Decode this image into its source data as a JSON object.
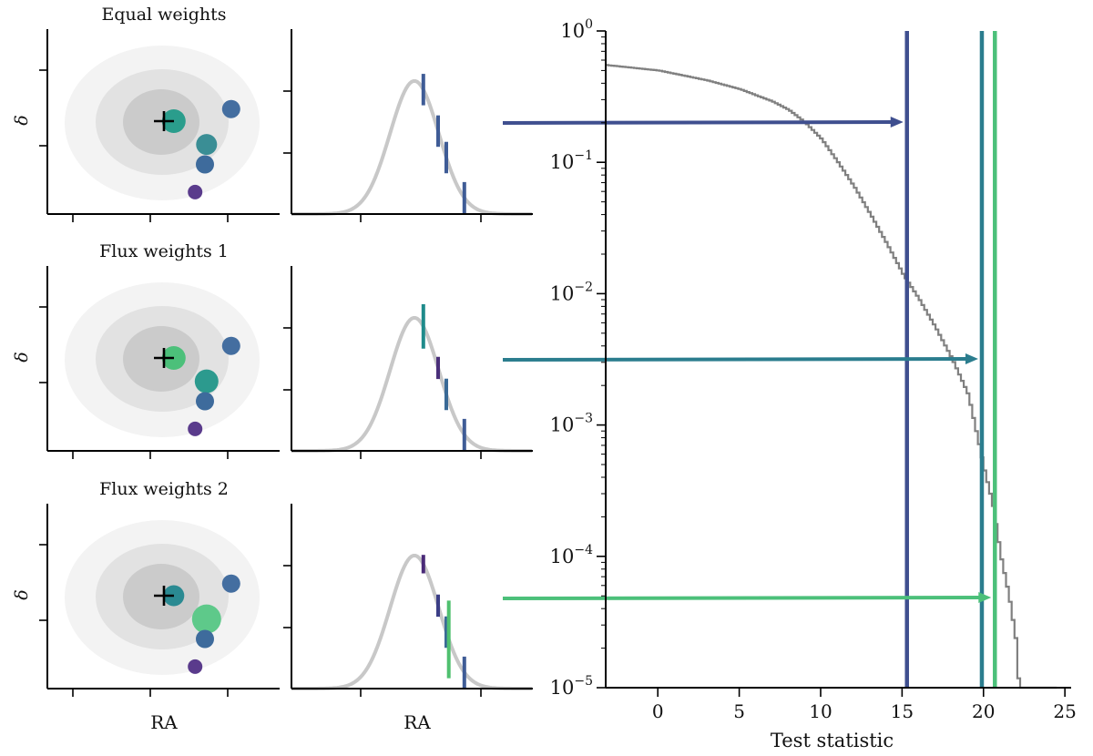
{
  "chart_data": [
    {
      "type": "scatter",
      "title": "Equal weights",
      "xlabel": "",
      "ylabel": "δ",
      "source": {
        "x": 0,
        "y": 0
      },
      "events": [
        {
          "x": 0.12,
          "y": 0.0,
          "size": 1.3,
          "color": "#2a9d8c"
        },
        {
          "x": 0.82,
          "y": 0.14,
          "size": 1.0,
          "color": "#446ea0"
        },
        {
          "x": 0.52,
          "y": -0.27,
          "size": 1.15,
          "color": "#3a8e95"
        },
        {
          "x": 0.5,
          "y": -0.5,
          "size": 1.0,
          "color": "#3e6b9c"
        },
        {
          "x": 0.38,
          "y": -0.82,
          "size": 0.8,
          "color": "#5a3b8c"
        }
      ]
    },
    {
      "type": "line",
      "title": "",
      "xlabel": "",
      "ylabel": "",
      "curve": "gaussian",
      "peak_x": 0.0,
      "sigma": 0.21,
      "markers": [
        {
          "x": 0.02,
          "height": 0.17,
          "color": "#3f5c96"
        },
        {
          "x": 0.2,
          "height": 0.17,
          "color": "#3f5c96"
        },
        {
          "x": 0.3,
          "height": 0.17,
          "color": "#3f5c96"
        },
        {
          "x": 0.52,
          "height": 0.17,
          "color": "#3f5c96"
        }
      ]
    },
    {
      "type": "scatter",
      "title": "Flux weights 1",
      "xlabel": "",
      "ylabel": "δ",
      "source": {
        "x": 0,
        "y": 0
      },
      "events": [
        {
          "x": 0.12,
          "y": 0.0,
          "size": 1.3,
          "color": "#4cc07a"
        },
        {
          "x": 0.82,
          "y": 0.14,
          "size": 1.0,
          "color": "#446ea0"
        },
        {
          "x": 0.52,
          "y": -0.27,
          "size": 1.3,
          "color": "#2c9a8e"
        },
        {
          "x": 0.5,
          "y": -0.5,
          "size": 1.0,
          "color": "#3e6b9c"
        },
        {
          "x": 0.38,
          "y": -0.82,
          "size": 0.8,
          "color": "#5a3b8c"
        }
      ]
    },
    {
      "type": "line",
      "title": "",
      "xlabel": "",
      "ylabel": "",
      "curve": "gaussian",
      "peak_x": 0.0,
      "sigma": 0.21,
      "markers": [
        {
          "x": 0.02,
          "height": 0.24,
          "color": "#1f8b8b"
        },
        {
          "x": 0.2,
          "height": 0.12,
          "color": "#4a2f7a"
        },
        {
          "x": 0.3,
          "height": 0.17,
          "color": "#3a6a96"
        },
        {
          "x": 0.52,
          "height": 0.17,
          "color": "#3f5c96"
        }
      ]
    },
    {
      "type": "scatter",
      "title": "Flux weights 2",
      "xlabel": "RA",
      "ylabel": "δ",
      "source": {
        "x": 0,
        "y": 0
      },
      "events": [
        {
          "x": 0.12,
          "y": 0.0,
          "size": 1.15,
          "color": "#2a8a92"
        },
        {
          "x": 0.82,
          "y": 0.14,
          "size": 1.0,
          "color": "#446ea0"
        },
        {
          "x": 0.52,
          "y": -0.27,
          "size": 1.6,
          "color": "#5ec98a"
        },
        {
          "x": 0.5,
          "y": -0.5,
          "size": 1.0,
          "color": "#3e6b9c"
        },
        {
          "x": 0.38,
          "y": -0.82,
          "size": 0.8,
          "color": "#5a3b8c"
        }
      ]
    },
    {
      "type": "line",
      "title": "",
      "xlabel": "RA",
      "ylabel": "",
      "curve": "gaussian",
      "peak_x": 0.0,
      "sigma": 0.21,
      "markers": [
        {
          "x": 0.02,
          "height": 0.1,
          "color": "#4a2a78"
        },
        {
          "x": 0.2,
          "height": 0.12,
          "color": "#3b3e86"
        },
        {
          "x": 0.3,
          "height": 0.17,
          "color": "#3a6a96"
        },
        {
          "x": 0.33,
          "height": 0.42,
          "color": "#4fc06f"
        },
        {
          "x": 0.52,
          "height": 0.17,
          "color": "#3f5c96"
        }
      ]
    },
    {
      "type": "line",
      "title": "",
      "xlabel": "Test statistic",
      "ylabel": "",
      "yscale": "log",
      "xlim": [
        -3.2,
        24.6
      ],
      "ylim": [
        1e-05,
        1
      ],
      "xticks": [
        0,
        5,
        10,
        15,
        20,
        25
      ],
      "xtick_labels": [
        "0",
        "5",
        "10",
        "15",
        "20",
        "25"
      ],
      "yticks": [
        1,
        0.1,
        0.01,
        0.001,
        0.0001,
        1e-05
      ],
      "ytick_labels": [
        {
          "base": "10",
          "exp": "0"
        },
        {
          "base": "10",
          "exp": "−1"
        },
        {
          "base": "10",
          "exp": "−2"
        },
        {
          "base": "10",
          "exp": "−3"
        },
        {
          "base": "10",
          "exp": "−4"
        },
        {
          "base": "10",
          "exp": "−5"
        }
      ],
      "survival_curve": {
        "color": "#808080",
        "x": [
          -3.2,
          0,
          3,
          5,
          7,
          8,
          9,
          10,
          11,
          12,
          13,
          14,
          15,
          16,
          17,
          18,
          19,
          20,
          20.5,
          21,
          21.5,
          22,
          22.1,
          23,
          24.5
        ],
        "y": [
          0.55,
          0.5,
          0.42,
          0.36,
          0.29,
          0.25,
          0.2,
          0.15,
          0.1,
          0.065,
          0.04,
          0.024,
          0.014,
          0.009,
          0.0055,
          0.0032,
          0.0017,
          0.00045,
          0.00025,
          0.0001,
          5e-05,
          2e-05,
          1e-05,
          1e-05,
          1e-05
        ]
      },
      "vertical_lines": [
        {
          "x": 15.3,
          "color": "#3f4f8f"
        },
        {
          "x": 19.9,
          "color": "#2b7d8e"
        },
        {
          "x": 20.7,
          "color": "#4cc07a"
        }
      ],
      "arrows": [
        {
          "from_row": 0,
          "to_x": 15.3,
          "y": 0.2,
          "color": "#3f4f8f"
        },
        {
          "from_row": 1,
          "to_x": 19.9,
          "y": 0.0032,
          "color": "#2b7d8e"
        },
        {
          "from_row": 2,
          "to_x": 20.7,
          "y": 4.5e-05,
          "color": "#4cc07a"
        }
      ]
    }
  ]
}
